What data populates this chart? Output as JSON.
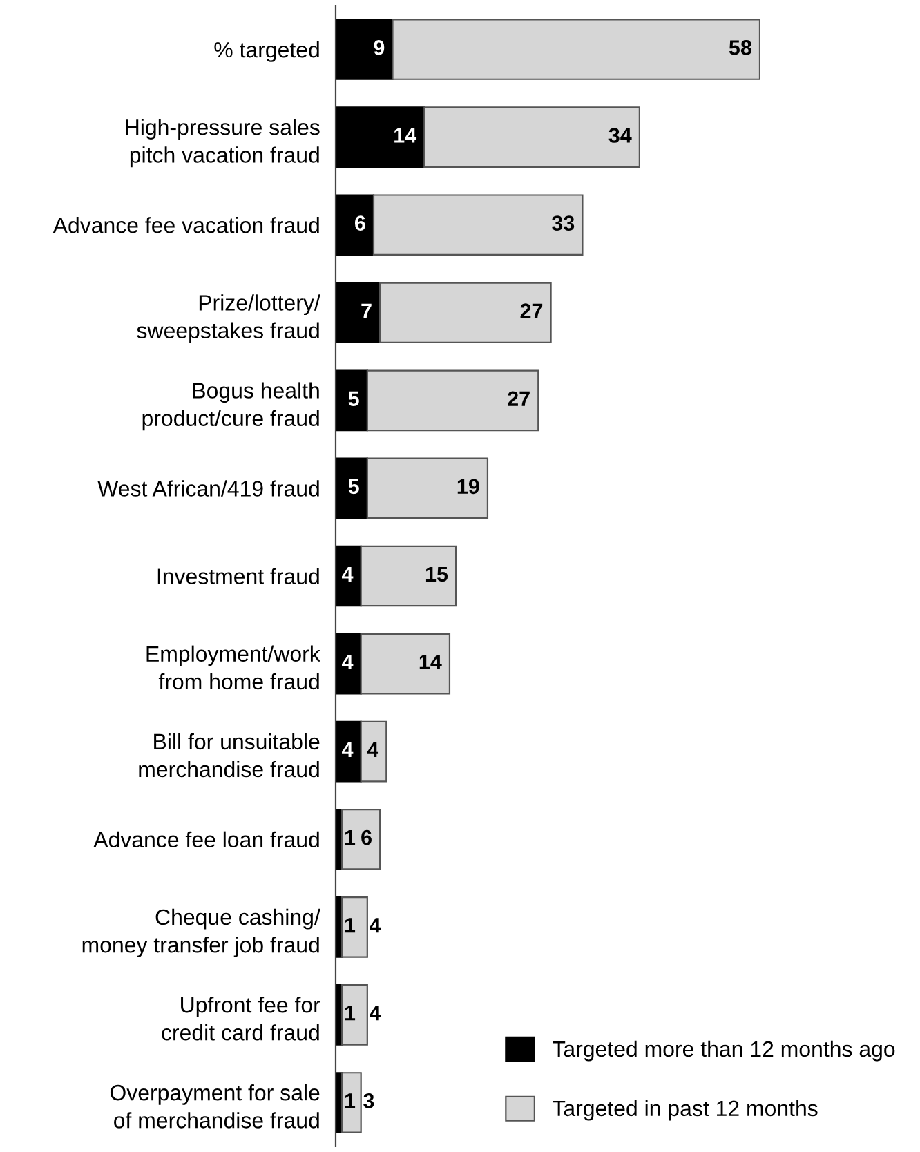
{
  "chart_data": {
    "type": "bar",
    "orientation": "horizontal",
    "stacked": true,
    "categories": [
      "% targeted",
      "High-pressure sales\npitch vacation fraud",
      "Advance fee vacation fraud",
      "Prize/lottery/\nsweepstakes fraud",
      "Bogus health\nproduct/cure fraud",
      "West African/419 fraud",
      "Investment fraud",
      "Employment/work\nfrom home fraud",
      "Bill for unsuitable\nmerchandise fraud",
      "Advance fee loan fraud",
      "Cheque cashing/\nmoney transfer job fraud",
      "Upfront fee for\ncredit card fraud",
      "Overpayment for sale\nof merchandise fraud"
    ],
    "series": [
      {
        "name": "Targeted more than 12 months ago",
        "color": "#000000",
        "values": [
          9,
          14,
          6,
          7,
          5,
          5,
          4,
          4,
          4,
          1,
          1,
          1,
          1
        ]
      },
      {
        "name": "Targeted in past 12 months",
        "color": "#d6d6d6",
        "values": [
          58,
          34,
          33,
          27,
          27,
          19,
          15,
          14,
          4,
          6,
          4,
          4,
          3
        ]
      }
    ],
    "data_labels": true,
    "legend": "bottom right",
    "tick_labels": "y"
  }
}
